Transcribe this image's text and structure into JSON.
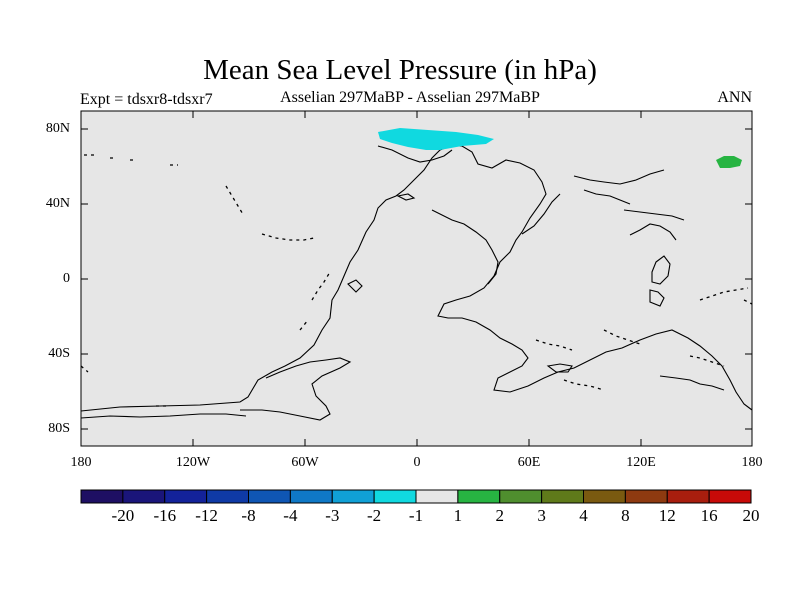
{
  "title": "Mean Sea Level Pressure (in hPa)",
  "experiment": "Expt = tdsxr8-tdsxr7",
  "subtitle": "Asselian 297MaBP - Asselian 297MaBP",
  "season": "ANN",
  "axes": {
    "lat_labels": [
      "80N",
      "40N",
      "0",
      "40S",
      "80S"
    ],
    "lat_values": [
      80,
      40,
      0,
      -40,
      -80
    ],
    "lon_labels": [
      "180",
      "120W",
      "60W",
      "0",
      "60E",
      "120E",
      "180"
    ],
    "lon_values": [
      -180,
      -120,
      -60,
      0,
      60,
      120,
      180
    ]
  },
  "colorbar": {
    "labels": [
      "-20",
      "-16",
      "-12",
      "-8",
      "-4",
      "-3",
      "-2",
      "-1",
      "1",
      "2",
      "3",
      "4",
      "8",
      "12",
      "16",
      "20"
    ],
    "colors": [
      "#1e0f63",
      "#1a157a",
      "#13229a",
      "#0f3aa6",
      "#0f56b4",
      "#0f78c6",
      "#10a0d6",
      "#10d9e0",
      "#e6e6e6",
      "#27b442",
      "#4f8e2e",
      "#5f7a1a",
      "#7a5a10",
      "#8e3a10",
      "#a81e0e",
      "#c80a08"
    ]
  },
  "anomalies": [
    {
      "name": "negative-anomaly",
      "level": "-2 to -1",
      "color": "#10d9e0"
    },
    {
      "name": "positive-anomaly",
      "level": "1 to 2",
      "color": "#27b442"
    }
  ],
  "background_color": "#e6e6e6"
}
